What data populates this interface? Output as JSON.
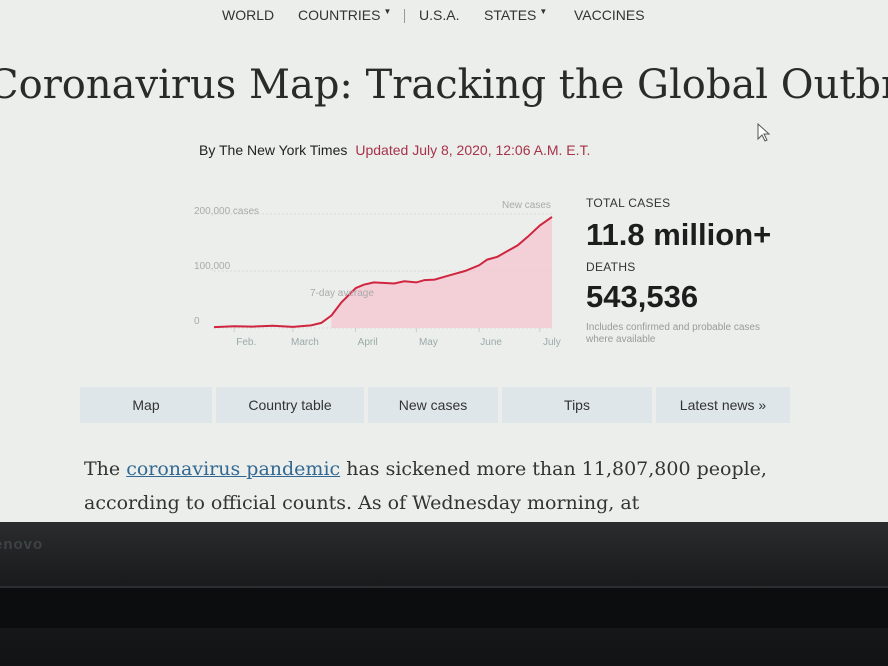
{
  "nav": {
    "world": "WORLD",
    "countries": "COUNTRIES",
    "usa": "U.S.A.",
    "states": "STATES",
    "vaccines": "VACCINES"
  },
  "headline": "Coronavirus Map: Tracking the Global Outbreak",
  "byline": {
    "author": "By The New York Times",
    "updated": "Updated July 8, 2020, 12:06 A.M. E.T."
  },
  "chart_data": {
    "type": "area",
    "x_tick_labels": [
      "Feb.",
      "March",
      "April",
      "May",
      "June",
      "July"
    ],
    "y_tick_labels": [
      "200,000 cases",
      "100,000",
      "0"
    ],
    "ylim": [
      0,
      200000
    ],
    "annotations": [
      "New cases",
      "7-day average"
    ],
    "series": [
      {
        "name": "New cases",
        "x": [
          "Jan 22",
          "Feb 1",
          "Feb 10",
          "Feb 20",
          "Mar 1",
          "Mar 10",
          "Mar 15",
          "Mar 20",
          "Mar 25",
          "Apr 1",
          "Apr 5",
          "Apr 10",
          "Apr 20",
          "Apr 25",
          "May 1",
          "May 5",
          "May 10",
          "May 15",
          "May 20",
          "May 25",
          "Jun 1",
          "Jun 5",
          "Jun 10",
          "Jun 15",
          "Jun 20",
          "Jun 25",
          "Jul 1",
          "Jul 7"
        ],
        "values": [
          1500,
          3000,
          2500,
          4000,
          2000,
          4500,
          9000,
          22000,
          45000,
          70000,
          76000,
          80000,
          78000,
          82000,
          80000,
          84000,
          85000,
          90000,
          95000,
          100000,
          110000,
          120000,
          125000,
          135000,
          145000,
          160000,
          180000,
          195000
        ]
      }
    ]
  },
  "stats": {
    "total_cases_label": "TOTAL CASES",
    "total_cases_value": "11.8 million+",
    "deaths_label": "DEATHS",
    "deaths_value": "543,536",
    "note": "Includes confirmed and probable cases where available"
  },
  "tabs": {
    "map": "Map",
    "country_table": "Country table",
    "new_cases": "New cases",
    "tips": "Tips",
    "latest_news": "Latest news »"
  },
  "body": {
    "link_text": "coronavirus pandemic",
    "prefix": "The ",
    "suffix": " has sickened more than 11,807,800 people, according to official counts. As of Wednesday morning, at"
  },
  "colors": {
    "chart_line": "#d0253f",
    "chart_area": "#f4c9d3",
    "accent_red": "#a8324a",
    "link_blue": "#326891",
    "tab_bg": "#dfe6ea"
  },
  "device": {
    "brand": "enovo"
  },
  "icons": {
    "cursor": "mouse-pointer-icon",
    "dropdown": "caret-down-icon"
  }
}
